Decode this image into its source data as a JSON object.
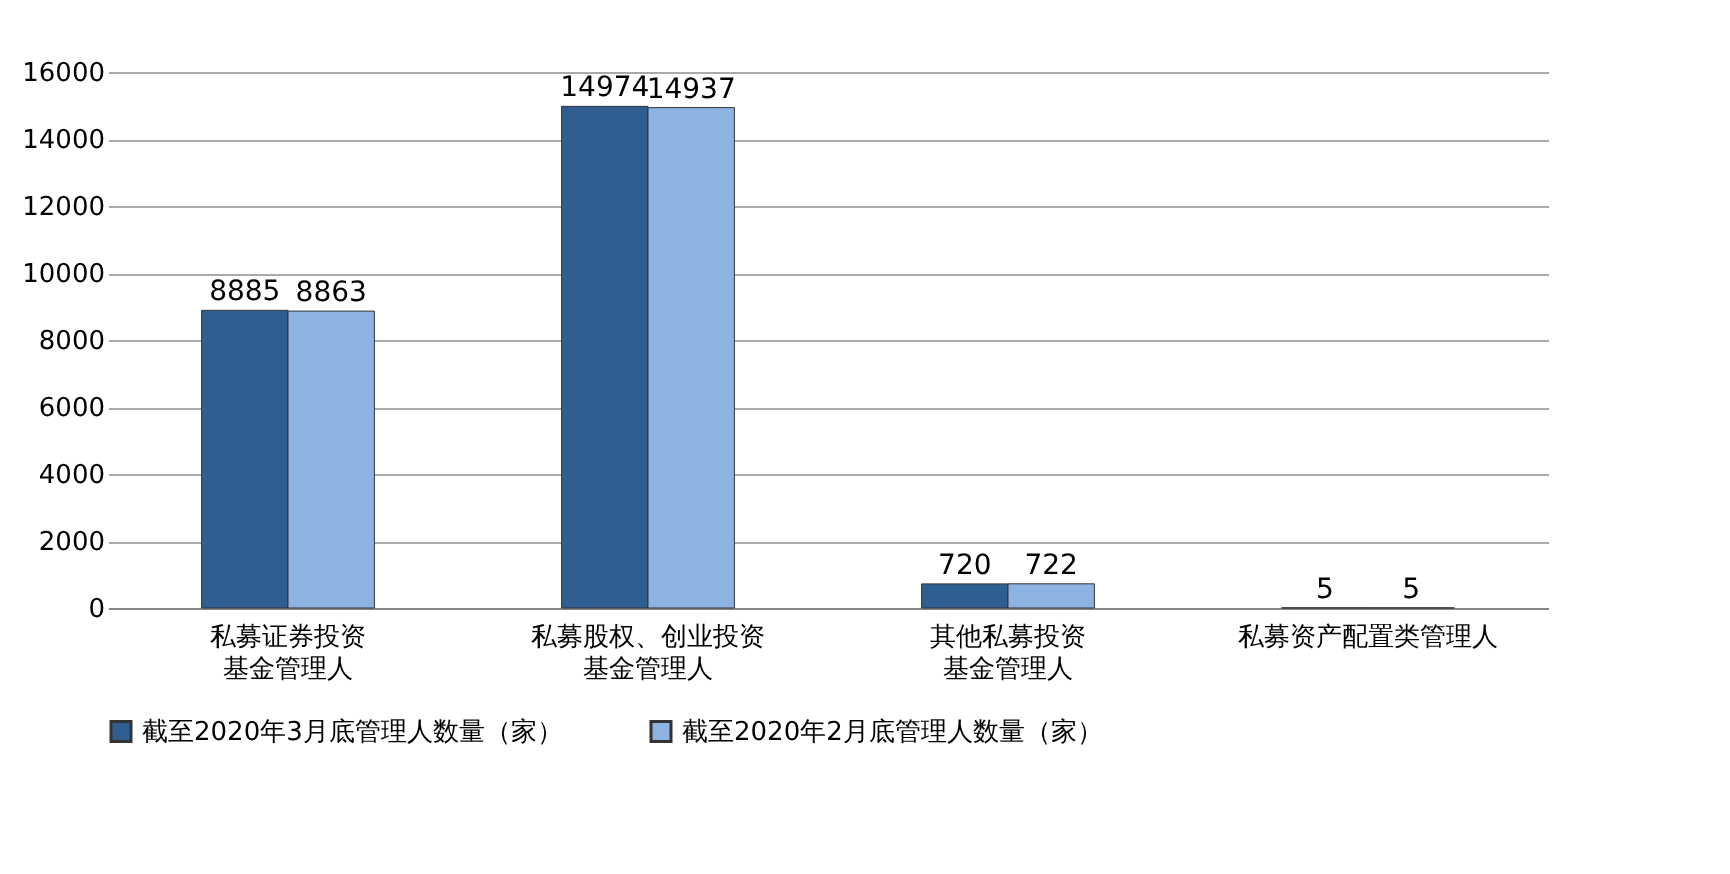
{
  "chart_data": {
    "type": "bar",
    "categories": [
      "私募证券投资基金管理人",
      "私募股权、创业投资基金管理人",
      "其他私募投资基金管理人",
      "私募资产配置类管理人"
    ],
    "series": [
      {
        "name": "截至2020年3月底管理人数量（家）",
        "color": "#2f5f91",
        "values": [
          8885,
          14974,
          720,
          5
        ]
      },
      {
        "name": "截至2020年2月底管理人数量（家）",
        "color": "#8db3e2",
        "values": [
          8863,
          14937,
          722,
          5
        ]
      }
    ],
    "ylim": [
      0,
      16000
    ],
    "yticks": [
      0,
      2000,
      4000,
      6000,
      8000,
      10000,
      12000,
      14000,
      16000
    ],
    "grid": "y",
    "legend": "bottom",
    "data_labels": true
  }
}
